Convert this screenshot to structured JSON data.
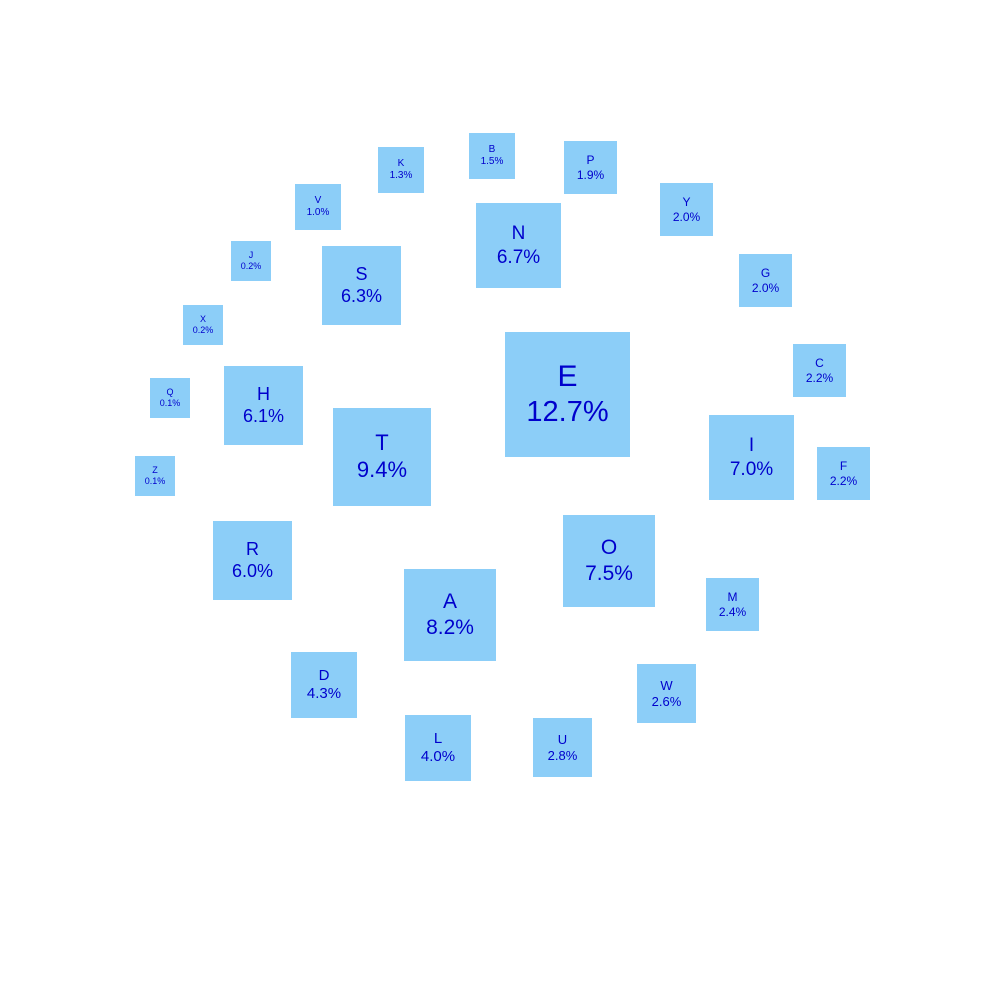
{
  "chart_data": {
    "type": "bubble-squares",
    "value_format": "percent",
    "colors": {
      "tile_fill": "#8ccef8",
      "label_text": "#0000cc",
      "background": "#ffffff"
    },
    "items": [
      {
        "letter": "E",
        "value": 12.7,
        "label": "12.7%"
      },
      {
        "letter": "T",
        "value": 9.4,
        "label": "9.4%"
      },
      {
        "letter": "A",
        "value": 8.2,
        "label": "8.2%"
      },
      {
        "letter": "O",
        "value": 7.5,
        "label": "7.5%"
      },
      {
        "letter": "I",
        "value": 7.0,
        "label": "7.0%"
      },
      {
        "letter": "N",
        "value": 6.7,
        "label": "6.7%"
      },
      {
        "letter": "S",
        "value": 6.3,
        "label": "6.3%"
      },
      {
        "letter": "H",
        "value": 6.1,
        "label": "6.1%"
      },
      {
        "letter": "R",
        "value": 6.0,
        "label": "6.0%"
      },
      {
        "letter": "D",
        "value": 4.3,
        "label": "4.3%"
      },
      {
        "letter": "L",
        "value": 4.0,
        "label": "4.0%"
      },
      {
        "letter": "U",
        "value": 2.8,
        "label": "2.8%"
      },
      {
        "letter": "W",
        "value": 2.6,
        "label": "2.6%"
      },
      {
        "letter": "M",
        "value": 2.4,
        "label": "2.4%"
      },
      {
        "letter": "F",
        "value": 2.2,
        "label": "2.2%"
      },
      {
        "letter": "C",
        "value": 2.2,
        "label": "2.2%"
      },
      {
        "letter": "G",
        "value": 2.0,
        "label": "2.0%"
      },
      {
        "letter": "Y",
        "value": 2.0,
        "label": "2.0%"
      },
      {
        "letter": "P",
        "value": 1.9,
        "label": "1.9%"
      },
      {
        "letter": "B",
        "value": 1.5,
        "label": "1.5%"
      },
      {
        "letter": "K",
        "value": 1.3,
        "label": "1.3%"
      },
      {
        "letter": "V",
        "value": 1.0,
        "label": "1.0%"
      },
      {
        "letter": "J",
        "value": 0.2,
        "label": "0.2%"
      },
      {
        "letter": "X",
        "value": 0.2,
        "label": "0.2%"
      },
      {
        "letter": "Q",
        "value": 0.1,
        "label": "0.1%"
      },
      {
        "letter": "Z",
        "value": 0.1,
        "label": "0.1%"
      }
    ]
  }
}
